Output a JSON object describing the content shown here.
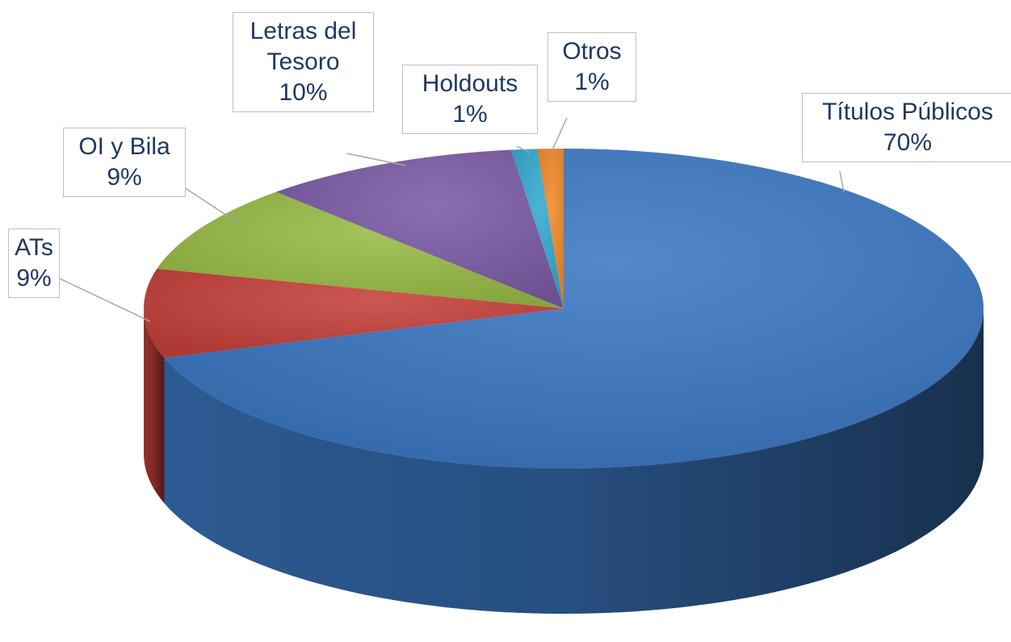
{
  "chart_data": {
    "type": "pie",
    "categories": [
      "Títulos Públicos",
      "ATs",
      "OI y Bila",
      "Letras del Tesoro",
      "Holdouts",
      "Otros"
    ],
    "values": [
      70,
      9,
      9,
      10,
      1,
      1
    ],
    "value_labels": [
      "70%",
      "9%",
      "9%",
      "10%",
      "1%",
      "1%"
    ],
    "colors": [
      "#3b78c3",
      "#c6403a",
      "#98bb45",
      "#7b5ba6",
      "#33a9cf",
      "#f08a2b"
    ],
    "three_d": true
  }
}
